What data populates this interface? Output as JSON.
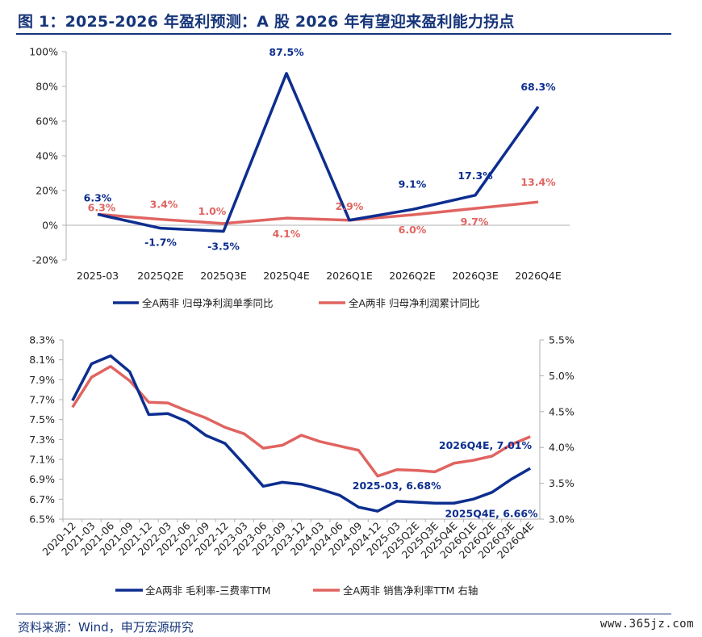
{
  "header": {
    "title": "图 1：2025-2026 年盈利预测：A 股 2026 年有望迎来盈利能力拐点"
  },
  "footer": {
    "source": "资料来源：Wind，申万宏源研究",
    "watermark": "www.365jz.com"
  },
  "colors": {
    "navy": "#0d2e8f",
    "salmon": "#e06461",
    "title": "#16357a",
    "axis": "#b0b0b0"
  },
  "chart_data": [
    {
      "type": "line",
      "categories": [
        "2025-03",
        "2025Q2E",
        "2025Q3E",
        "2025Q4E",
        "2026Q1E",
        "2026Q2E",
        "2026Q3E",
        "2026Q4E"
      ],
      "ylim": [
        -20,
        100
      ],
      "yticks": [
        "100%",
        "80%",
        "60%",
        "40%",
        "20%",
        "0%",
        "-20%"
      ],
      "ytick_values": [
        100,
        80,
        60,
        40,
        20,
        0,
        -20
      ],
      "series": [
        {
          "name": "全A两非 归母净利润单季同比",
          "color": "#0d2e8f",
          "values": [
            6.3,
            -1.7,
            -3.5,
            87.5,
            2.9,
            9.1,
            17.3,
            68.3
          ],
          "labels": [
            "6.3%",
            "-1.7%",
            "-3.5%",
            "87.5%",
            "",
            "9.1%",
            "17.3%",
            "68.3%"
          ]
        },
        {
          "name": "全A两非 归母净利润累计同比",
          "color": "#e06461",
          "values": [
            6.3,
            3.4,
            1.0,
            4.1,
            2.9,
            6.0,
            9.7,
            13.4
          ],
          "labels": [
            "6.3%",
            "3.4%",
            "1.0%",
            "4.1%",
            "2.9%",
            "6.0%",
            "9.7%",
            "13.4%"
          ]
        }
      ],
      "legend": "bottom"
    },
    {
      "type": "line",
      "categories": [
        "2020-12",
        "2021-03",
        "2021-06",
        "2021-09",
        "2021-12",
        "2022-03",
        "2022-06",
        "2022-09",
        "2022-12",
        "2023-03",
        "2023-06",
        "2023-09",
        "2023-12",
        "2024-03",
        "2024-06",
        "2024-09",
        "2024-12",
        "2025-03",
        "2025Q2E",
        "2025Q3E",
        "2025Q4E",
        "2026Q1E",
        "2026Q2E",
        "2026Q3E",
        "2026Q4E"
      ],
      "ylim_left": [
        6.5,
        8.3
      ],
      "yticks_left": [
        "8.3%",
        "8.1%",
        "7.9%",
        "7.7%",
        "7.5%",
        "7.3%",
        "7.1%",
        "6.9%",
        "6.7%",
        "6.5%"
      ],
      "ylim_right": [
        3.0,
        5.5
      ],
      "yticks_right": [
        "5.5%",
        "5.0%",
        "4.5%",
        "4.0%",
        "3.5%",
        "3.0%"
      ],
      "series": [
        {
          "name": "全A两非 毛利率-三费率TTM",
          "axis": "left",
          "color": "#0d2e8f",
          "values": [
            7.69,
            8.06,
            8.14,
            7.98,
            7.55,
            7.56,
            7.48,
            7.34,
            7.26,
            7.05,
            6.83,
            6.87,
            6.85,
            6.8,
            6.74,
            6.62,
            6.58,
            6.68,
            6.67,
            6.66,
            6.66,
            6.7,
            6.77,
            6.9,
            7.01
          ]
        },
        {
          "name": "全A两非 销售净利率TTM 右轴",
          "axis": "right",
          "color": "#e06461",
          "values": [
            4.56,
            4.98,
            5.13,
            4.93,
            4.63,
            4.62,
            4.51,
            4.41,
            4.28,
            4.19,
            3.99,
            4.03,
            4.17,
            4.08,
            4.02,
            3.96,
            3.6,
            3.69,
            3.68,
            3.66,
            3.78,
            3.82,
            3.88,
            4.04,
            4.15
          ]
        }
      ],
      "annotations": [
        "2026Q4E, 7.01%",
        "2025-03, 6.68%",
        "2025Q4E, 6.66%"
      ],
      "legend": "bottom"
    }
  ]
}
